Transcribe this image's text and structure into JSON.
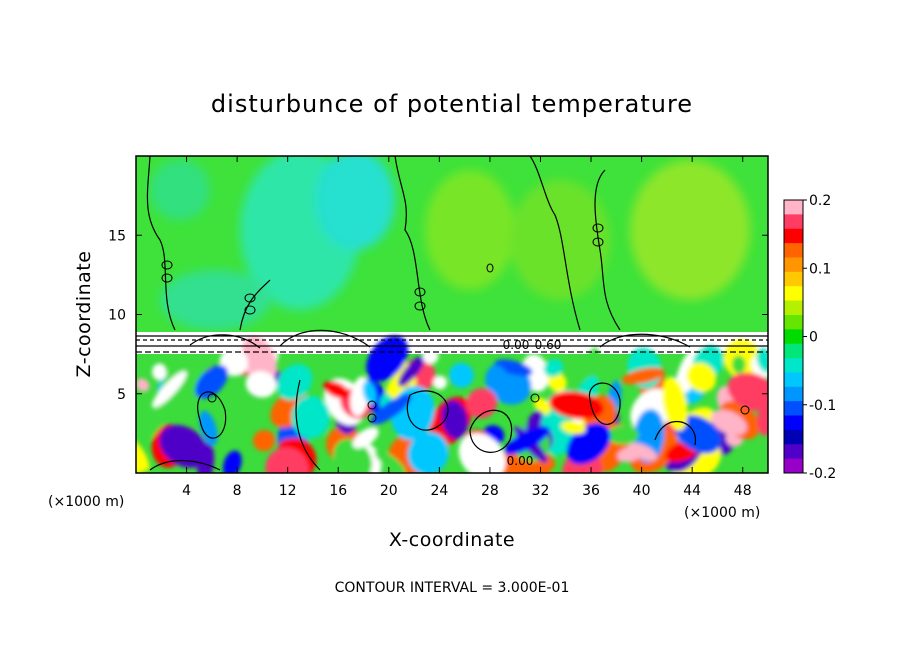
{
  "chart_data": {
    "type": "heatmap",
    "title": "disturbunce of potential temperature",
    "xlabel": "X-coordinate",
    "ylabel": "Z-coordinate",
    "x_unit_left": "(×1000 m)",
    "x_unit_right": "(×1000 m)",
    "xlim": [
      0,
      50
    ],
    "ylim": [
      0,
      20
    ],
    "x_ticks": [
      "4",
      "8",
      "12",
      "16",
      "20",
      "24",
      "28",
      "32",
      "36",
      "40",
      "44",
      "48"
    ],
    "x_tick_values": [
      4,
      8,
      12,
      16,
      20,
      24,
      28,
      32,
      36,
      40,
      44,
      48
    ],
    "y_ticks": [
      "5",
      "10",
      "15"
    ],
    "y_tick_values": [
      5,
      10,
      15
    ],
    "colorbar": {
      "range": [
        -0.2,
        0.2
      ],
      "ticks": [
        "0.2",
        "0.1",
        "0",
        "-0.1",
        "-0.2"
      ],
      "tick_values": [
        0.2,
        0.1,
        0,
        -0.1,
        -0.2
      ],
      "colors": [
        "#ffb4c8",
        "#ff3c64",
        "#ff0000",
        "#ff6400",
        "#ff9600",
        "#ffc800",
        "#ffff00",
        "#b4f000",
        "#64e600",
        "#00dc00",
        "#00e678",
        "#00e6c8",
        "#00c8ff",
        "#0096ff",
        "#0050ff",
        "#0000ff",
        "#0000b4",
        "#5000c8",
        "#9600c8"
      ]
    },
    "contour_labels": [
      "0.00",
      "0.60",
      "0.00"
    ],
    "note": "CONTOUR INTERVAL = 3.000E-01"
  }
}
